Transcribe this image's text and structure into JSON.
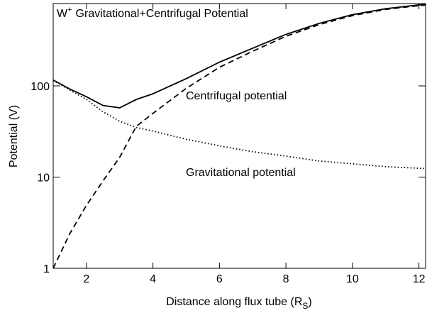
{
  "chart_data": {
    "type": "line",
    "title": {
      "base": "W",
      "superscript": "+",
      "text": "Gravitational+Centrifugal Potential"
    },
    "xlabel": {
      "text": "Distance along flux tube (R",
      "subscript": "S",
      "suffix": ")"
    },
    "ylabel": "Potential (V)",
    "ylog": true,
    "xlim": [
      1,
      12.2
    ],
    "ylim": [
      1,
      800
    ],
    "xticks": [
      2,
      4,
      6,
      8,
      10,
      12
    ],
    "yticks": [
      1,
      10,
      100
    ],
    "x": [
      1,
      1.5,
      2,
      2.5,
      3,
      3.5,
      4,
      5,
      6,
      7,
      8,
      9,
      10,
      11,
      12,
      12.2
    ],
    "series": [
      {
        "color": "#000000",
        "style": "solid",
        "values": [
          116,
          92.4,
          76,
          61,
          57.5,
          71,
          82,
          120,
          182,
          259,
          367,
          485,
          604,
          703,
          772.5,
          782.4
        ]
      },
      {
        "name": "Centrifugal potential",
        "color": "#000000",
        "style": "dashed",
        "values": [
          1,
          2.4,
          4.9,
          9.1,
          16.5,
          36,
          50,
          94,
          160,
          240,
          350,
          470,
          590,
          690,
          760,
          770
        ]
      },
      {
        "name": "Gravitational potential",
        "color": "#000000",
        "style": "dotted",
        "values": [
          115,
          90,
          71,
          52,
          41,
          35,
          32,
          26,
          22,
          19,
          17,
          15,
          14,
          13,
          12.5,
          12.4
        ]
      }
    ]
  }
}
